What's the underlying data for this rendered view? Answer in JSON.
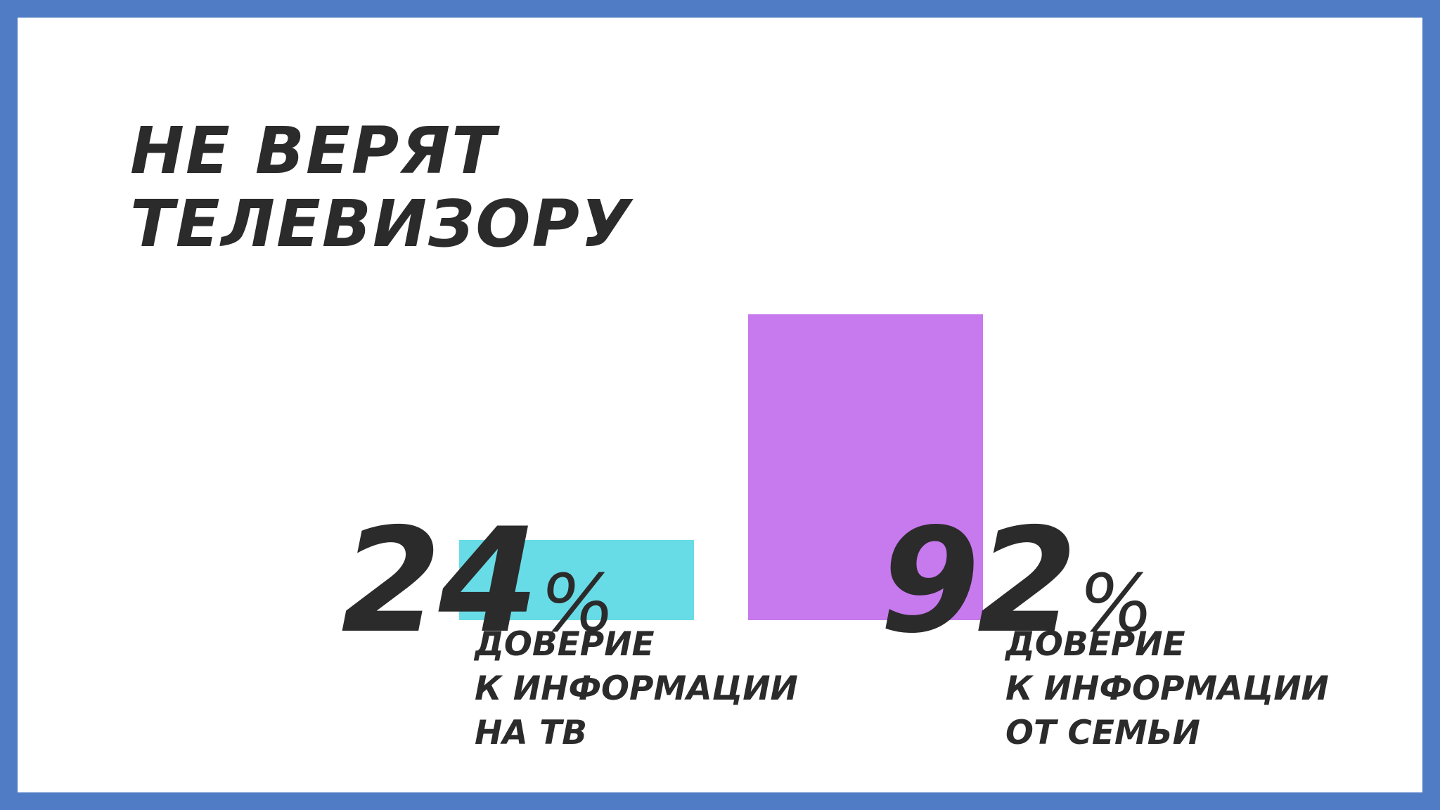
{
  "title": "НЕ ВЕРЯТ\nТЕЛЕВИЗОРУ",
  "colors": {
    "frame": "#4f7cc4",
    "background": "#ffffff",
    "text": "#2b2b2b",
    "tv_bar": "#68dce6",
    "family_bar": "#c779ee"
  },
  "chart_data": {
    "type": "bar",
    "categories": [
      "ДОВЕРИЕ\nК ИНФОРМАЦИИ\nНА ТВ",
      "ДОВЕРИЕ\nК ИНФОРМАЦИИ\nОТ СЕМЬИ"
    ],
    "values": [
      24,
      92
    ],
    "value_labels": [
      "24",
      "92"
    ],
    "unit": "%",
    "colors": [
      "#68dce6",
      "#c779ee"
    ],
    "ylim": [
      0,
      100
    ],
    "grid": false,
    "legend": "none"
  }
}
